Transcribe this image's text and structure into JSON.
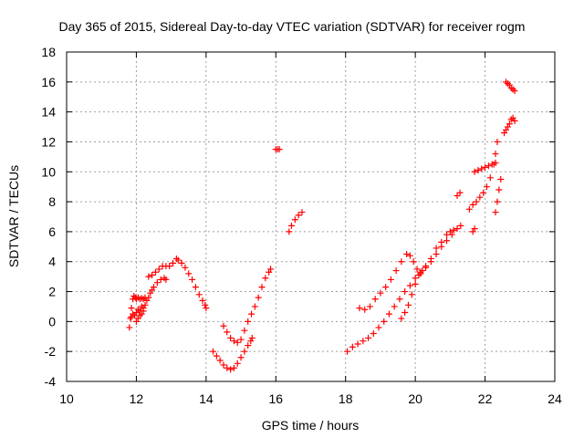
{
  "chart_data": {
    "type": "scatter",
    "title": "Day 365 of 2015, Sidereal Day-to-day VTEC variation (SDTVAR) for receiver rogm",
    "xlabel": "GPS time / hours",
    "ylabel": "SDTVAR / TECUs",
    "xlim": [
      10,
      24
    ],
    "ylim": [
      -4,
      18
    ],
    "xticks": [
      10,
      12,
      14,
      16,
      18,
      20,
      22,
      24
    ],
    "yticks": [
      -4,
      -2,
      0,
      2,
      4,
      6,
      8,
      10,
      12,
      14,
      16,
      18
    ],
    "grid": true,
    "marker": "+",
    "color": "#ff0000",
    "series": [
      {
        "points": [
          [
            11.8,
            -0.4
          ],
          [
            11.83,
            0.2
          ],
          [
            11.86,
            0.9
          ],
          [
            11.9,
            1.5
          ],
          [
            11.93,
            1.7
          ],
          [
            11.97,
            1.6
          ],
          [
            12.0,
            1.5
          ],
          [
            12.05,
            1.6
          ],
          [
            12.1,
            1.5
          ],
          [
            12.15,
            1.55
          ],
          [
            12.2,
            1.5
          ],
          [
            12.25,
            1.6
          ],
          [
            11.85,
            0.3
          ],
          [
            11.9,
            0.5
          ],
          [
            11.95,
            0.4
          ],
          [
            12.0,
            0.6
          ],
          [
            12.05,
            0.8
          ],
          [
            12.1,
            0.7
          ],
          [
            12.15,
            1.0
          ],
          [
            12.2,
            0.9
          ],
          [
            12.25,
            1.1
          ],
          [
            12.3,
            1.4
          ],
          [
            12.0,
            0.0
          ],
          [
            12.05,
            0.2
          ],
          [
            12.1,
            0.4
          ],
          [
            12.15,
            0.5
          ],
          [
            12.2,
            0.7
          ],
          [
            12.35,
            3.0
          ],
          [
            12.45,
            3.1
          ],
          [
            12.55,
            3.3
          ],
          [
            12.65,
            3.5
          ],
          [
            12.75,
            3.7
          ],
          [
            12.85,
            3.7
          ],
          [
            12.95,
            3.7
          ],
          [
            13.05,
            3.9
          ],
          [
            13.15,
            4.2
          ],
          [
            12.35,
            1.6
          ],
          [
            12.4,
            1.9
          ],
          [
            12.45,
            2.1
          ],
          [
            12.5,
            2.3
          ],
          [
            12.6,
            2.6
          ],
          [
            12.7,
            2.8
          ],
          [
            12.8,
            2.9
          ],
          [
            12.85,
            2.8
          ],
          [
            13.2,
            4.1
          ],
          [
            13.3,
            3.9
          ],
          [
            13.4,
            3.6
          ],
          [
            13.5,
            3.2
          ],
          [
            13.6,
            2.8
          ],
          [
            13.7,
            2.3
          ],
          [
            13.8,
            1.8
          ],
          [
            13.9,
            1.4
          ],
          [
            13.97,
            1.1
          ],
          [
            14.0,
            0.9
          ]
        ]
      },
      {
        "points": [
          [
            14.2,
            -2.0
          ],
          [
            14.3,
            -2.3
          ],
          [
            14.4,
            -2.6
          ],
          [
            14.5,
            -2.9
          ],
          [
            14.6,
            -3.1
          ],
          [
            14.7,
            -3.2
          ],
          [
            14.8,
            -3.1
          ],
          [
            14.9,
            -2.8
          ],
          [
            15.0,
            -2.4
          ],
          [
            15.1,
            -2.0
          ],
          [
            15.2,
            -1.6
          ],
          [
            15.28,
            -1.3
          ],
          [
            15.32,
            -1.1
          ],
          [
            14.5,
            -0.3
          ],
          [
            14.6,
            -0.7
          ],
          [
            14.7,
            -1.1
          ],
          [
            14.8,
            -1.3
          ],
          [
            14.9,
            -1.4
          ],
          [
            15.0,
            -1.2
          ],
          [
            15.1,
            -0.6
          ],
          [
            15.2,
            0.0
          ],
          [
            15.3,
            0.5
          ],
          [
            15.4,
            1.0
          ],
          [
            15.5,
            1.6
          ],
          [
            15.6,
            2.3
          ],
          [
            15.7,
            2.9
          ],
          [
            15.8,
            3.3
          ],
          [
            15.85,
            3.5
          ],
          [
            16.0,
            11.5
          ],
          [
            16.05,
            11.5
          ],
          [
            16.1,
            11.5
          ],
          [
            16.38,
            6.0
          ],
          [
            16.45,
            6.4
          ],
          [
            16.55,
            6.8
          ],
          [
            16.65,
            7.1
          ],
          [
            16.75,
            7.3
          ]
        ]
      },
      {
        "points": [
          [
            18.05,
            -2.0
          ],
          [
            18.2,
            -1.7
          ],
          [
            18.35,
            -1.5
          ],
          [
            18.5,
            -1.3
          ],
          [
            18.65,
            -1.1
          ],
          [
            18.8,
            -0.8
          ],
          [
            18.95,
            -0.4
          ],
          [
            19.1,
            0.0
          ],
          [
            19.25,
            0.5
          ],
          [
            19.4,
            1.0
          ],
          [
            19.55,
            1.5
          ],
          [
            19.7,
            2.0
          ],
          [
            19.85,
            2.4
          ],
          [
            20.0,
            2.9
          ],
          [
            20.15,
            3.3
          ],
          [
            20.3,
            3.6
          ],
          [
            20.45,
            4.0
          ],
          [
            20.6,
            4.5
          ],
          [
            20.75,
            5.0
          ],
          [
            20.9,
            5.4
          ],
          [
            21.05,
            5.8
          ],
          [
            21.2,
            6.2
          ],
          [
            21.3,
            6.4
          ],
          [
            18.4,
            0.9
          ],
          [
            18.55,
            0.8
          ],
          [
            18.7,
            1.0
          ],
          [
            18.85,
            1.5
          ],
          [
            19.0,
            1.9
          ],
          [
            19.15,
            2.3
          ],
          [
            19.3,
            2.8
          ],
          [
            19.45,
            3.4
          ],
          [
            19.6,
            4.0
          ],
          [
            19.75,
            4.5
          ],
          [
            19.85,
            4.4
          ],
          [
            19.95,
            4.0
          ],
          [
            20.05,
            3.5
          ],
          [
            20.15,
            3.2
          ],
          [
            19.6,
            0.2
          ],
          [
            19.7,
            0.6
          ],
          [
            19.8,
            1.1
          ],
          [
            19.9,
            1.8
          ],
          [
            20.0,
            2.5
          ],
          [
            20.1,
            3.1
          ],
          [
            20.2,
            3.4
          ],
          [
            20.3,
            3.7
          ],
          [
            20.45,
            4.2
          ],
          [
            20.6,
            4.9
          ],
          [
            20.75,
            5.3
          ],
          [
            20.9,
            5.8
          ],
          [
            21.0,
            6.0
          ],
          [
            21.1,
            6.1
          ],
          [
            21.2,
            8.4
          ],
          [
            21.28,
            8.6
          ],
          [
            21.65,
            6.0
          ],
          [
            21.7,
            6.2
          ],
          [
            21.55,
            7.5
          ],
          [
            21.65,
            7.8
          ],
          [
            21.75,
            8.0
          ],
          [
            21.85,
            8.3
          ],
          [
            21.95,
            8.6
          ],
          [
            22.05,
            9.0
          ],
          [
            22.15,
            9.6
          ],
          [
            22.25,
            10.5
          ],
          [
            22.3,
            11.2
          ],
          [
            22.35,
            12.0
          ],
          [
            21.7,
            10.0
          ],
          [
            21.8,
            10.1
          ],
          [
            21.9,
            10.2
          ],
          [
            22.0,
            10.3
          ],
          [
            22.1,
            10.4
          ],
          [
            22.2,
            10.5
          ],
          [
            22.3,
            10.6
          ],
          [
            22.3,
            7.3
          ],
          [
            22.35,
            8.0
          ],
          [
            22.4,
            8.8
          ],
          [
            22.45,
            9.5
          ],
          [
            22.55,
            12.6
          ],
          [
            22.6,
            12.8
          ],
          [
            22.65,
            13.0
          ],
          [
            22.7,
            13.2
          ],
          [
            22.75,
            13.5
          ],
          [
            22.8,
            13.6
          ],
          [
            22.85,
            13.4
          ],
          [
            22.6,
            16.0
          ],
          [
            22.65,
            15.9
          ],
          [
            22.7,
            15.8
          ],
          [
            22.75,
            15.6
          ],
          [
            22.8,
            15.5
          ],
          [
            22.85,
            15.4
          ]
        ]
      }
    ]
  }
}
